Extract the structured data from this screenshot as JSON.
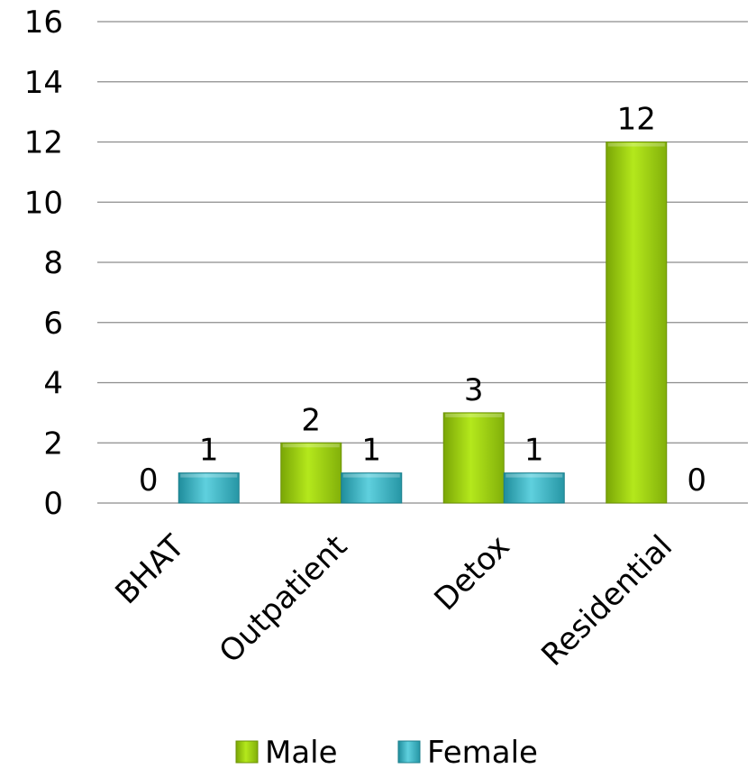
{
  "chart_data": {
    "type": "bar",
    "categories": [
      "BHAT",
      "Outpatient",
      "Detox",
      "Residential"
    ],
    "series": [
      {
        "name": "Male",
        "values": [
          0,
          2,
          3,
          12
        ],
        "color": "#9acd0a"
      },
      {
        "name": "Female",
        "values": [
          1,
          1,
          1,
          0
        ],
        "color": "#35a9b9"
      }
    ],
    "ylim": [
      0,
      16
    ],
    "yticks": [
      0,
      2,
      4,
      6,
      8,
      10,
      12,
      14,
      16
    ],
    "grid": true,
    "legend_position": "bottom",
    "data_labels": true,
    "x_tick_rotation": -45
  }
}
